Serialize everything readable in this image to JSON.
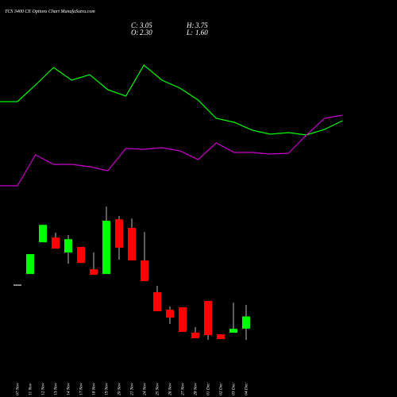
{
  "chart_data": {
    "type": "candlestick",
    "title": "TCS 3400 CE Options Chart MunafaSutra.com",
    "summary": [
      {
        "name": "C:",
        "value": "3.05"
      },
      {
        "name": "H:",
        "value": "3.75"
      },
      {
        "name": "O:",
        "value": "2.30"
      },
      {
        "name": "L:",
        "value": "1.60"
      }
    ],
    "x": [
      "07 Nov",
      "11 Nov",
      "12 Nov",
      "13 Nov",
      "14 Nov",
      "17 Nov",
      "18 Nov",
      "19 Nov",
      "20 Nov",
      "21 Nov",
      "24 Nov",
      "25 Nov",
      "26 Nov",
      "27 Nov",
      "28 Nov",
      "01 Dec",
      "02 Dec",
      "03 Dec",
      "04 Dec"
    ],
    "open": [
      5.0,
      5.66,
      7.61,
      7.9,
      6.98,
      7.32,
      5.95,
      5.66,
      9.02,
      8.49,
      6.49,
      4.54,
      3.46,
      3.61,
      2.05,
      4.0,
      1.95,
      2.05,
      2.3
    ],
    "high": [
      5.0,
      6.88,
      8.68,
      8.2,
      8.05,
      7.32,
      6.98,
      9.8,
      9.22,
      9.07,
      8.24,
      4.93,
      3.66,
      3.61,
      2.39,
      4.0,
      1.95,
      3.9,
      3.75
    ],
    "low": [
      5.0,
      5.66,
      7.61,
      7.22,
      6.29,
      6.34,
      5.61,
      5.66,
      6.54,
      6.49,
      5.22,
      3.37,
      2.59,
      2.1,
      1.71,
      1.61,
      1.66,
      2.05,
      1.6
    ],
    "close": [
      5.0,
      6.88,
      8.68,
      7.22,
      7.8,
      6.34,
      5.61,
      8.93,
      7.27,
      6.49,
      5.22,
      3.37,
      2.98,
      2.1,
      1.71,
      1.9,
      1.66,
      2.29,
      3.05
    ],
    "ylim": [
      0,
      10.3
    ],
    "up_color": "#00ff00",
    "down_color": "#ff0000",
    "flat_color": "#ffffff",
    "lines": {
      "ylim": [
        0,
        100
      ],
      "series": [
        {
          "color": "#00ff00",
          "values": [
            61,
            71.5,
            82.5,
            74.5,
            78,
            68.5,
            64.5,
            84,
            74.5,
            69.5,
            62,
            50.5,
            48,
            43,
            40.5,
            41.5,
            40,
            43.5,
            49
          ]
        },
        {
          "color": "#cc00cc",
          "values": [
            8,
            27.5,
            21.5,
            21.5,
            20,
            17.5,
            31.5,
            31,
            32,
            30,
            24.5,
            35,
            29,
            29,
            28,
            28.5,
            40,
            50.5,
            52.5
          ]
        }
      ]
    }
  }
}
